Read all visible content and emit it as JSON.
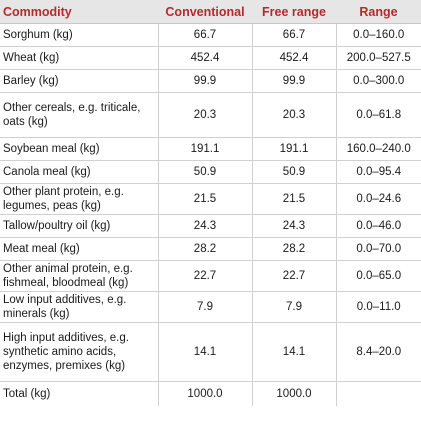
{
  "table": {
    "headers": {
      "commodity": "Commodity",
      "conventional": "Conventional",
      "free_range": "Free range",
      "range": "Range"
    },
    "rows": [
      {
        "commodity": "Sorghum (kg)",
        "conventional": "66.7",
        "free_range": "66.7",
        "range": "0.0–160.0"
      },
      {
        "commodity": "Wheat (kg)",
        "conventional": "452.4",
        "free_range": "452.4",
        "range": "200.0–527.5"
      },
      {
        "commodity": "Barley (kg)",
        "conventional": "99.9",
        "free_range": "99.9",
        "range": "0.0–300.0"
      },
      {
        "commodity": "Other cereals, e.g. triticale, oats (kg)",
        "conventional": "20.3",
        "free_range": "20.3",
        "range": "0.0–61.8"
      },
      {
        "commodity": "Soybean meal (kg)",
        "conventional": "191.1",
        "free_range": "191.1",
        "range": "160.0–240.0"
      },
      {
        "commodity": "Canola meal (kg)",
        "conventional": "50.9",
        "free_range": "50.9",
        "range": "0.0–95.4"
      },
      {
        "commodity": "Other plant protein, e.g. legumes, peas (kg)",
        "conventional": "21.5",
        "free_range": "21.5",
        "range": "0.0–24.6"
      },
      {
        "commodity": "Tallow/poultry oil (kg)",
        "conventional": "24.3",
        "free_range": "24.3",
        "range": "0.0–46.0"
      },
      {
        "commodity": "Meat meal (kg)",
        "conventional": "28.2",
        "free_range": "28.2",
        "range": "0.0–70.0"
      },
      {
        "commodity": "Other animal protein, e.g. fishmeal, bloodmeal (kg)",
        "conventional": "22.7",
        "free_range": "22.7",
        "range": "0.0–65.0"
      },
      {
        "commodity": "Low input additives, e.g. minerals (kg)",
        "conventional": "7.9",
        "free_range": "7.9",
        "range": "0.0–11.0"
      },
      {
        "commodity": "High input additives, e.g. synthetic amino acids, enzymes, premixes (kg)",
        "conventional": "14.1",
        "free_range": "14.1",
        "range": "8.4–20.0"
      },
      {
        "commodity": "Total (kg)",
        "conventional": "1000.0",
        "free_range": "1000.0",
        "range": ""
      }
    ]
  }
}
